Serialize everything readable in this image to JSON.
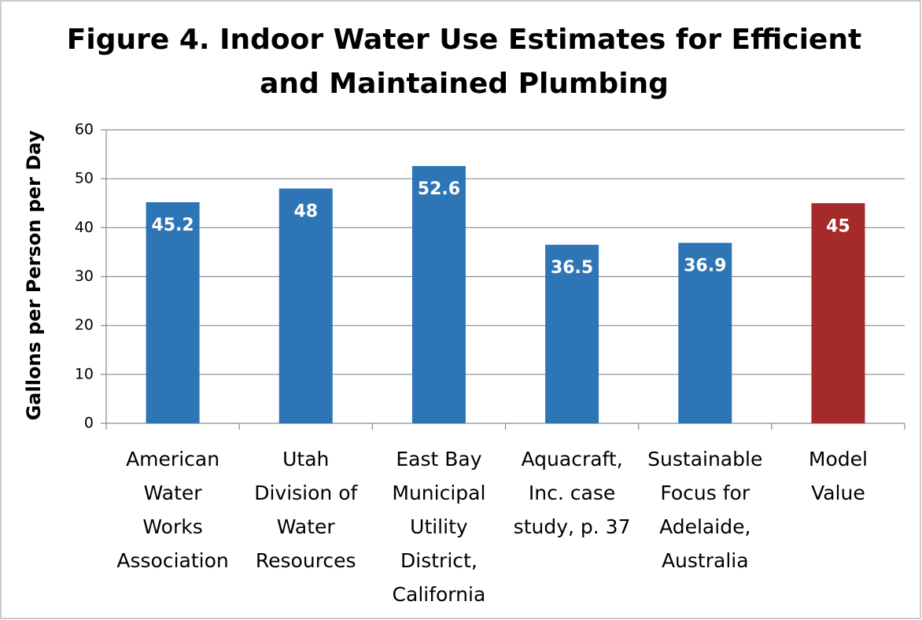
{
  "chart_data": {
    "type": "bar",
    "title": [
      "Figure 4. Indoor Water Use Estimates for Efficient",
      "and Maintained Plumbing"
    ],
    "y_label": "Gallons per Person per Day",
    "categories": [
      [
        "American",
        "Water",
        "Works",
        "Association"
      ],
      [
        "Utah",
        "Division of",
        "Water",
        "Resources"
      ],
      [
        "East Bay",
        "Municipal",
        "Utility",
        "District,",
        "California"
      ],
      [
        "Aquacraft,",
        "Inc. case",
        "study, p. 37"
      ],
      [
        "Sustainable",
        "Focus for",
        "Adelaide,",
        "Australia"
      ],
      [
        "Model",
        "Value"
      ]
    ],
    "values": [
      45.2,
      48,
      52.6,
      36.5,
      36.9,
      45
    ],
    "colors": [
      "#2e75b6",
      "#2e75b6",
      "#2e75b6",
      "#2e75b6",
      "#2e75b6",
      "#a52a2a"
    ],
    "ylim": [
      0,
      60
    ],
    "yticks": [
      0,
      10,
      20,
      30,
      40,
      50,
      60
    ],
    "grid": true
  }
}
